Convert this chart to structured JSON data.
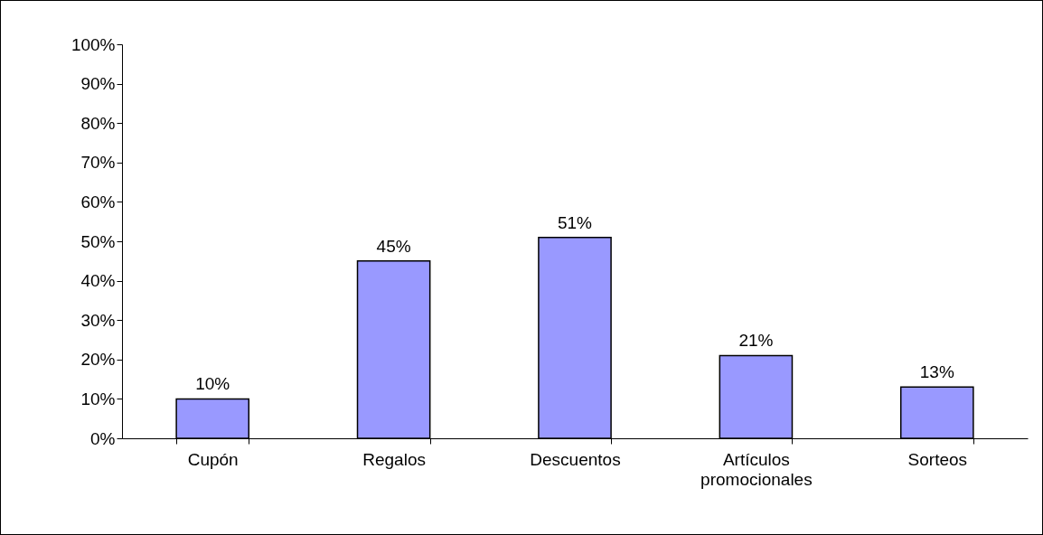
{
  "chart_data": {
    "type": "bar",
    "categories": [
      "Cupón",
      "Regalos",
      "Descuentos",
      "Artículos promocionales",
      "Sorteos"
    ],
    "values": [
      10,
      45,
      51,
      21,
      13
    ],
    "value_labels": [
      "10%",
      "45%",
      "51%",
      "21%",
      "13%"
    ],
    "color": "#9999ff",
    "ylim": [
      0,
      100
    ],
    "yticks": [
      {
        "value": 0,
        "label": "0%"
      },
      {
        "value": 10,
        "label": "10%"
      },
      {
        "value": 20,
        "label": "20%"
      },
      {
        "value": 30,
        "label": "30%"
      },
      {
        "value": 40,
        "label": "40%"
      },
      {
        "value": 50,
        "label": "50%"
      },
      {
        "value": 60,
        "label": "60%"
      },
      {
        "value": 70,
        "label": "70%"
      },
      {
        "value": 80,
        "label": "80%"
      },
      {
        "value": 90,
        "label": "90%"
      },
      {
        "value": 100,
        "label": "100%"
      }
    ],
    "grid": false,
    "legend": false
  }
}
